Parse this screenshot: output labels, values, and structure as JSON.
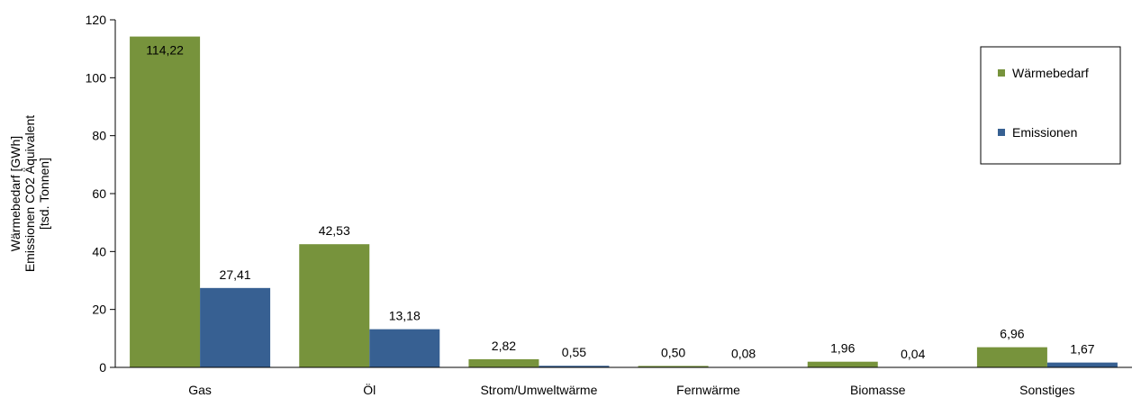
{
  "chart_data": {
    "type": "bar",
    "categories": [
      "Gas",
      "Öl",
      "Strom/Umweltwärme",
      "Fernwärme",
      "Biomasse",
      "Sonstiges"
    ],
    "series": [
      {
        "name": "Wärmebedarf",
        "color": "#77933c",
        "values": [
          114.22,
          42.53,
          2.82,
          0.5,
          1.96,
          6.96
        ],
        "labels": [
          "114,22",
          "42,53",
          "2,82",
          "0,50",
          "1,96",
          "6,96"
        ]
      },
      {
        "name": "Emissionen",
        "color": "#376092",
        "values": [
          27.41,
          13.18,
          0.55,
          0.08,
          0.04,
          1.67
        ],
        "labels": [
          "27,41",
          "13,18",
          "0,55",
          "0,08",
          "0,04",
          "1,67"
        ]
      }
    ],
    "ylabel": [
      "Wärmebedarf [GWh]",
      "Emissionen CO2 Äquivalent",
      "[tsd. Tonnen]"
    ],
    "ylim": [
      0,
      120
    ],
    "yticks": [
      0,
      20,
      40,
      60,
      80,
      100,
      120
    ],
    "grid": false,
    "legend_position": "right"
  }
}
